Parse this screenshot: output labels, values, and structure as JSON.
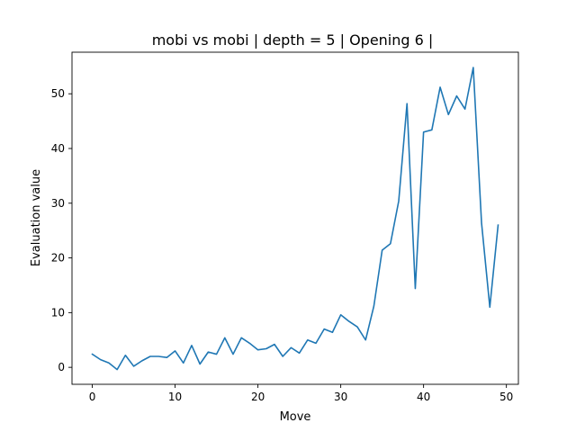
{
  "chart_data": {
    "type": "line",
    "title": "mobi vs mobi | depth = 5 | Opening 6 |",
    "xlabel": "Move",
    "ylabel": "Evaluation value",
    "xlim": [
      -2.45,
      51.45
    ],
    "ylim": [
      -3.1,
      57.6
    ],
    "xticks": [
      0,
      10,
      20,
      30,
      40,
      50
    ],
    "yticks": [
      0,
      10,
      20,
      30,
      40,
      50
    ],
    "grid": false,
    "series": [
      {
        "color": "#1f77b4",
        "x": [
          0,
          1,
          2,
          3,
          4,
          5,
          6,
          7,
          8,
          9,
          10,
          11,
          12,
          13,
          14,
          15,
          16,
          17,
          18,
          19,
          20,
          21,
          22,
          23,
          24,
          25,
          26,
          27,
          28,
          29,
          30,
          31,
          32,
          33,
          34,
          35,
          36,
          37,
          38,
          39,
          40,
          41,
          42,
          43,
          44,
          45,
          46,
          47,
          48,
          49
        ],
        "y": [
          2.4,
          1.4,
          0.8,
          -0.4,
          2.2,
          0.2,
          1.2,
          2.0,
          2.0,
          1.8,
          3.0,
          0.8,
          4.0,
          0.6,
          2.8,
          2.4,
          5.4,
          2.4,
          5.4,
          4.4,
          3.2,
          3.4,
          4.2,
          2.0,
          3.6,
          2.6,
          5.0,
          4.4,
          7.0,
          6.4,
          9.6,
          8.4,
          7.4,
          5.0,
          11.2,
          21.4,
          22.6,
          30.4,
          48.2,
          14.4,
          43.0,
          43.4,
          51.2,
          46.2,
          49.6,
          47.2,
          54.8,
          26.4,
          11.0,
          26.0
        ]
      }
    ]
  }
}
